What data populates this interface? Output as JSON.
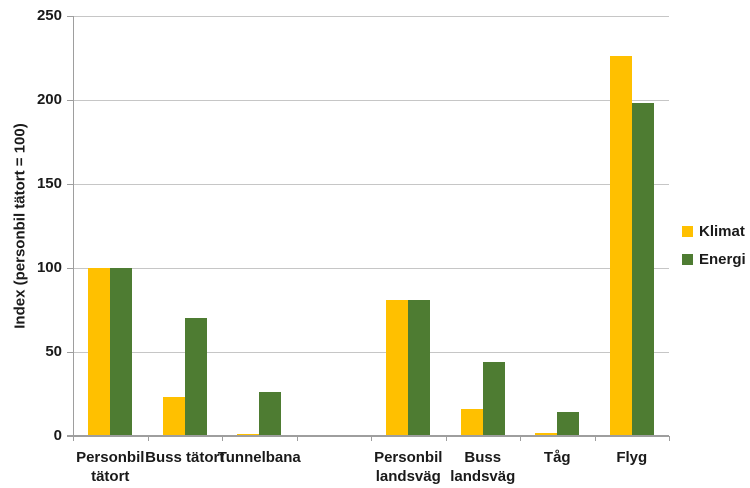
{
  "chart_data": {
    "type": "bar",
    "title": "",
    "xlabel": "",
    "ylabel": "Index (personbil tätort = 100)",
    "ylim": [
      0,
      250
    ],
    "yticks": [
      0,
      50,
      100,
      150,
      200,
      250
    ],
    "grid": "horizontal gridlines on",
    "legend_position": "right, vertically centered",
    "categories": [
      "Personbil\ntätort",
      "Buss tätort",
      "Tunnelbana",
      "",
      "Personbil\nlandsväg",
      "Buss\nlandsväg",
      "Tåg",
      "Flyg"
    ],
    "series": [
      {
        "name": "Klimat",
        "color": "#FFC000",
        "values": [
          100,
          23,
          1,
          null,
          81,
          16,
          2,
          226
        ]
      },
      {
        "name": "Energi",
        "color": "#4E7C32",
        "values": [
          100,
          70,
          26,
          null,
          81,
          44,
          14,
          198
        ]
      }
    ],
    "colors": {
      "background": "#FFFFFF",
      "gridline": "#C6C6C6",
      "axis": "#9E9E9E",
      "text": "#1A1A1A"
    }
  }
}
